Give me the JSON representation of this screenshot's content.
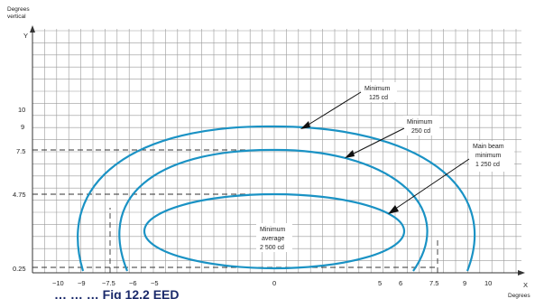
{
  "axes": {
    "y_title_line1": "Degrees",
    "y_title_line2": "vertical",
    "y_label": "Y",
    "x_label": "X",
    "x_title": "Degrees",
    "y_ticks": [
      "10",
      "9",
      "7.5",
      "4.75",
      "0.25"
    ],
    "x_ticks": [
      "−10",
      "−9",
      "−7.5",
      "−6",
      "−5",
      "0",
      "5",
      "6",
      "7.5",
      "9",
      "10"
    ]
  },
  "callouts": {
    "c125": {
      "line1": "Minimum",
      "line2": "125 cd"
    },
    "c250": {
      "line1": "Minimum",
      "line2": "250 cd"
    },
    "main": {
      "line1": "Main beam",
      "line2": "minimum",
      "line3": "1 250 cd"
    },
    "avg": {
      "line1": "Minimum",
      "line2": "average",
      "line3": "2 500 cd"
    }
  },
  "caption": {
    "text": "… … … Fig 12.2 EED"
  },
  "colors": {
    "contour": "#1a92c4",
    "caption": "#1b2a6b"
  }
}
